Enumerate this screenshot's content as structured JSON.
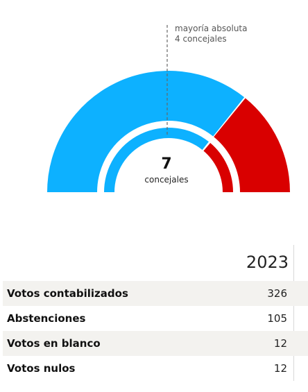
{
  "chart_data": {
    "type": "pie",
    "subtype": "semicircle-hemicycle",
    "total_seats": 7,
    "total_seats_label": "concejales",
    "majority": {
      "line1": "mayoría absoluta",
      "line2": "4 concejales"
    },
    "series": [
      {
        "values": [
          5
        ],
        "color": "#0db1ff"
      },
      {
        "values": [
          2
        ],
        "color": "#d90000"
      }
    ],
    "inner_series": [
      {
        "values": [
          5
        ],
        "color": "#0db1ff"
      },
      {
        "values": [
          2
        ],
        "color": "#d90000"
      }
    ]
  },
  "table": {
    "year": "2023",
    "rows": [
      {
        "label": "Votos contabilizados",
        "value": "326"
      },
      {
        "label": "Abstenciones",
        "value": "105"
      },
      {
        "label": "Votos en blanco",
        "value": "12"
      },
      {
        "label": "Votos nulos",
        "value": "12"
      }
    ]
  }
}
